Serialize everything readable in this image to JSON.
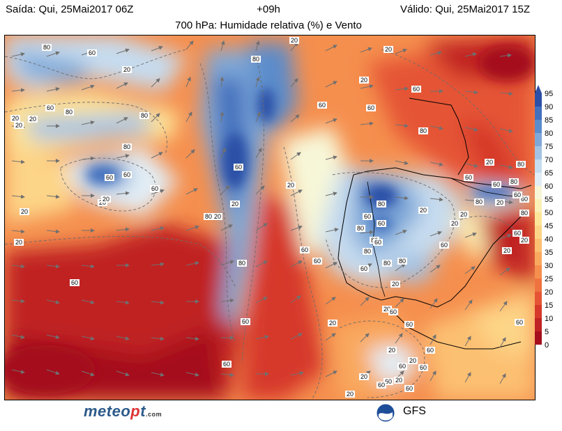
{
  "header": {
    "left": "Saída: Qui, 25Mai2017 06Z",
    "mid": "+09h",
    "right": "Válido: Qui, 25Mai2017 15Z",
    "title": "700 hPa: Humidade relativa (%) e Vento"
  },
  "colorbar": {
    "levels": [
      "95",
      "90",
      "85",
      "80",
      "75",
      "70",
      "65",
      "60",
      "55",
      "50",
      "45",
      "40",
      "35",
      "30",
      "25",
      "20",
      "15",
      "10",
      "5",
      "0"
    ],
    "colors": [
      "#2c4fa6",
      "#4270bd",
      "#5b8ccb",
      "#7fa8d8",
      "#a4c3e4",
      "#c6dcef",
      "#e2eef6",
      "#f7f7d8",
      "#fbf0b6",
      "#fde59a",
      "#fdd588",
      "#fcc072",
      "#f9a95e",
      "#f58f4e",
      "#ef7340",
      "#e55535",
      "#d6392b",
      "#c02323",
      "#a50f1d"
    ]
  },
  "contour_labels": [
    "80",
    "60",
    "20",
    "80",
    "80",
    "60",
    "20",
    "20",
    "80",
    "20",
    "60",
    "60",
    "20",
    "60",
    "80",
    "20",
    "60",
    "80",
    "20",
    "20",
    "60",
    "60",
    "20",
    "60",
    "80",
    "20",
    "80",
    "60",
    "80",
    "60",
    "60",
    "60",
    "20",
    "20",
    "60",
    "80",
    "80",
    "60",
    "60",
    "80",
    "80",
    "80",
    "60",
    "20",
    "20",
    "60",
    "80",
    "80",
    "60",
    "20",
    "20",
    "60",
    "60",
    "20",
    "20",
    "60",
    "60",
    "20",
    "20",
    "60",
    "60",
    "60",
    "20",
    "60",
    "60",
    "20",
    "60",
    "20",
    "20",
    "60",
    "20",
    "80",
    "20",
    "80",
    "60",
    "60",
    "20",
    "60",
    "20",
    "20"
  ],
  "logos": {
    "meteo_main": "meteo",
    "meteo_dot": "p",
    "meteo_tail": "t",
    "meteo_suffix": ".com",
    "model": "GFS",
    "agency_icon": "noaa-icon"
  }
}
